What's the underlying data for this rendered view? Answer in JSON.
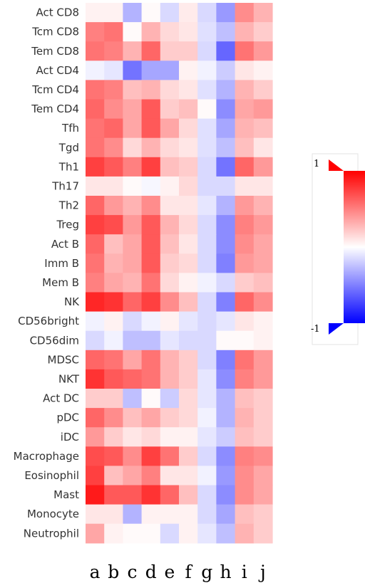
{
  "chart_data": {
    "type": "heatmap",
    "rows": [
      "Act CD8",
      "Tcm CD8",
      "Tem CD8",
      "Act CD4",
      "Tcm CD4",
      "Tem CD4",
      "Tfh",
      "Tgd",
      "Th1",
      "Th17",
      "Th2",
      "Treg",
      "Act B",
      "Imm B",
      "Mem B",
      "NK",
      "CD56bright",
      "CD56dim",
      "MDSC",
      "NKT",
      "Act DC",
      "pDC",
      "iDC",
      "Macrophage",
      "Eosinophil",
      "Mast",
      "Monocyte",
      "Neutrophil"
    ],
    "columns": [
      "a",
      "b",
      "c",
      "d",
      "e",
      "f",
      "g",
      "h",
      "i",
      "j"
    ],
    "values": [
      [
        0.05,
        0.05,
        -0.3,
        0.02,
        -0.15,
        0.08,
        -0.15,
        -0.4,
        0.45,
        0.3
      ],
      [
        0.5,
        0.55,
        0.02,
        0.3,
        0.15,
        0.1,
        -0.12,
        -0.25,
        0.3,
        0.2
      ],
      [
        0.55,
        0.5,
        0.3,
        0.6,
        0.2,
        0.2,
        -0.15,
        -0.6,
        0.55,
        0.4
      ],
      [
        -0.05,
        -0.1,
        -0.55,
        -0.35,
        -0.35,
        0.05,
        -0.05,
        -0.2,
        0.1,
        0.05
      ],
      [
        0.55,
        0.5,
        0.25,
        0.3,
        0.15,
        0.1,
        -0.12,
        -0.3,
        0.3,
        0.2
      ],
      [
        0.6,
        0.45,
        0.35,
        0.65,
        0.2,
        0.25,
        0.02,
        -0.45,
        0.35,
        0.4
      ],
      [
        0.55,
        0.6,
        0.35,
        0.65,
        0.35,
        0.15,
        -0.12,
        -0.35,
        0.3,
        0.25
      ],
      [
        0.55,
        0.45,
        0.15,
        0.3,
        0.15,
        0.1,
        -0.12,
        -0.25,
        0.25,
        0.1
      ],
      [
        0.75,
        0.65,
        0.5,
        0.75,
        0.25,
        0.2,
        -0.15,
        -0.55,
        0.6,
        0.4
      ],
      [
        0.1,
        0.1,
        0.02,
        -0.03,
        0.05,
        0.15,
        -0.15,
        -0.15,
        0.1,
        0.1
      ],
      [
        0.6,
        0.4,
        0.3,
        0.45,
        0.1,
        0.1,
        -0.1,
        -0.3,
        0.4,
        0.3
      ],
      [
        0.75,
        0.7,
        0.4,
        0.65,
        0.3,
        0.15,
        -0.15,
        -0.45,
        0.5,
        0.4
      ],
      [
        0.6,
        0.25,
        0.35,
        0.65,
        0.25,
        0.1,
        -0.15,
        -0.45,
        0.45,
        0.35
      ],
      [
        0.55,
        0.3,
        0.35,
        0.65,
        0.2,
        0.15,
        -0.15,
        -0.5,
        0.4,
        0.35
      ],
      [
        0.5,
        0.35,
        0.3,
        0.55,
        0.15,
        0.05,
        -0.05,
        -0.15,
        0.2,
        0.25
      ],
      [
        0.85,
        0.8,
        0.6,
        0.75,
        0.45,
        0.25,
        -0.15,
        -0.5,
        0.6,
        0.45
      ],
      [
        -0.05,
        0.05,
        -0.15,
        -0.05,
        0.05,
        -0.1,
        -0.15,
        -0.1,
        0.1,
        0.05
      ],
      [
        -0.15,
        -0.05,
        -0.25,
        -0.25,
        -0.1,
        -0.15,
        -0.15,
        0.02,
        0.02,
        0.05
      ],
      [
        0.6,
        0.55,
        0.35,
        0.55,
        0.3,
        0.2,
        -0.15,
        -0.5,
        0.55,
        0.4
      ],
      [
        0.8,
        0.65,
        0.6,
        0.55,
        0.3,
        0.2,
        -0.1,
        -0.45,
        0.5,
        0.4
      ],
      [
        0.2,
        0.2,
        -0.25,
        0.02,
        -0.2,
        0.15,
        -0.1,
        -0.3,
        0.25,
        0.2
      ],
      [
        0.6,
        0.45,
        0.25,
        0.35,
        0.2,
        0.15,
        -0.05,
        -0.3,
        0.3,
        0.2
      ],
      [
        0.4,
        0.2,
        0.1,
        0.15,
        0.05,
        0.05,
        -0.1,
        -0.2,
        0.25,
        0.2
      ],
      [
        0.7,
        0.65,
        0.45,
        0.75,
        0.55,
        0.2,
        -0.15,
        -0.45,
        0.5,
        0.45
      ],
      [
        0.75,
        0.25,
        0.35,
        0.5,
        0.1,
        0.1,
        -0.05,
        -0.4,
        0.45,
        0.35
      ],
      [
        0.9,
        0.65,
        0.65,
        0.8,
        0.6,
        0.25,
        -0.15,
        -0.45,
        0.45,
        0.35
      ],
      [
        0.1,
        0.1,
        -0.3,
        0.05,
        0.05,
        0.05,
        -0.15,
        -0.35,
        0.25,
        0.2
      ],
      [
        0.35,
        0.05,
        0.02,
        0.02,
        -0.15,
        0.05,
        -0.1,
        -0.25,
        0.3,
        0.2
      ]
    ],
    "color_scale": {
      "min": -1,
      "max": 1,
      "min_label": "-1",
      "max_label": "1",
      "min_color": "#0000ff",
      "mid_color": "#ffffff",
      "max_color": "#ff0000"
    },
    "legend": "right",
    "grid": false
  }
}
